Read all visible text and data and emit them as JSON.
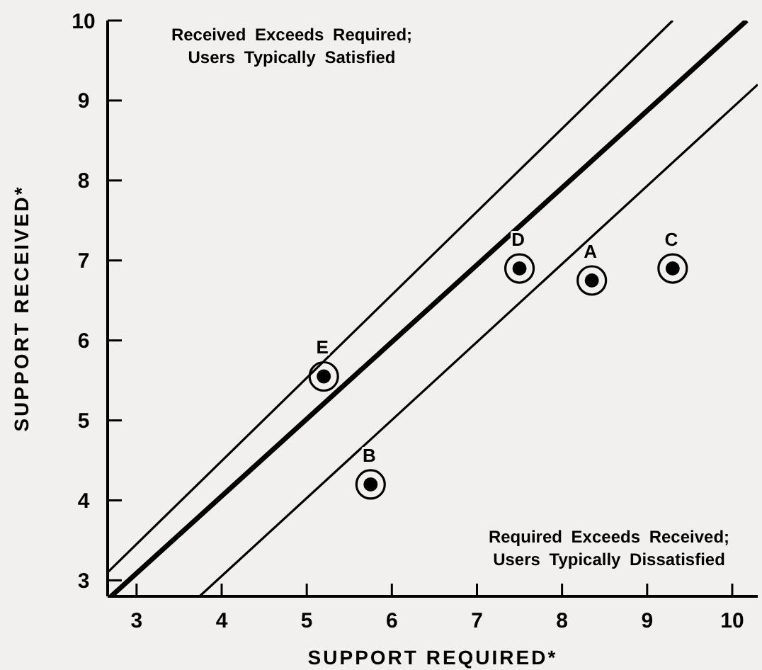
{
  "chart_data": {
    "type": "scatter",
    "xlabel": "SUPPORT REQUIRED*",
    "ylabel": "SUPPORT RECEIVED*",
    "xlim": [
      2.66,
      10.3
    ],
    "ylim": [
      2.8,
      10
    ],
    "xticks": [
      3,
      4,
      5,
      6,
      7,
      8,
      9,
      10
    ],
    "yticks": [
      3,
      4,
      5,
      6,
      7,
      8,
      9,
      10
    ],
    "grid": false,
    "series": [
      {
        "type": "line",
        "color": "#000000",
        "x": [
          2.7,
          10.17
        ],
        "values": [
          2.8,
          10
        ]
      },
      {
        "type": "line",
        "color": "#000000",
        "x": [
          2.66,
          9.3
        ],
        "values": [
          3.1,
          10
        ]
      },
      {
        "type": "line",
        "color": "#000000",
        "x": [
          3.74,
          10.3
        ],
        "values": [
          2.8,
          9.2
        ]
      },
      {
        "color": "#000000",
        "marker": "circle",
        "x": [
          8.35,
          5.75,
          9.3,
          7.5,
          5.2
        ],
        "values": [
          6.75,
          4.2,
          6.9,
          6.9,
          5.55
        ]
      }
    ],
    "annotations": [
      "Received Exceeds Required;\nUsers Typically Satisfied",
      "Required Exceeds Received;\nUsers Typically Dissatisfied",
      {
        "text": "A",
        "x": 8.35,
        "y": 6.75
      },
      {
        "text": "B",
        "x": 5.75,
        "y": 4.2
      },
      {
        "text": "C",
        "x": 9.3,
        "y": 6.9
      },
      {
        "text": "D",
        "x": 7.5,
        "y": 6.9
      },
      {
        "text": "E",
        "x": 5.2,
        "y": 5.55
      }
    ]
  }
}
